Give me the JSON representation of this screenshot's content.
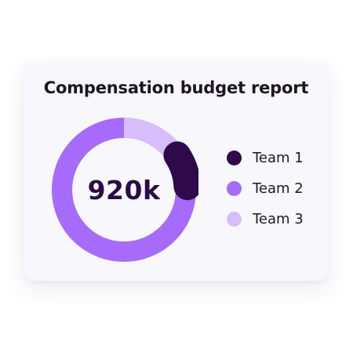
{
  "card": {
    "title": "Compensation budget report",
    "center_value": "920k"
  },
  "legend": [
    {
      "label": "Team 1",
      "color": "#2e0a4a"
    },
    {
      "label": "Team 2",
      "color": "#a66bfb"
    },
    {
      "label": "Team 3",
      "color": "#d7bdfd"
    }
  ],
  "chart_data": {
    "type": "pie",
    "style": "donut",
    "total_label": "920k",
    "categories": [
      "Team 1",
      "Team 2",
      "Team 3"
    ],
    "values": [
      10,
      75,
      15
    ],
    "unit": "percent of total",
    "colors": [
      "#2e0a4a",
      "#a66bfb",
      "#d7bdfd"
    ],
    "legend_position": "right",
    "start_at": "top",
    "direction": "clockwise",
    "order": [
      "Team 3",
      "Team 1",
      "Team 2"
    ],
    "highlighted": "Team 1"
  }
}
